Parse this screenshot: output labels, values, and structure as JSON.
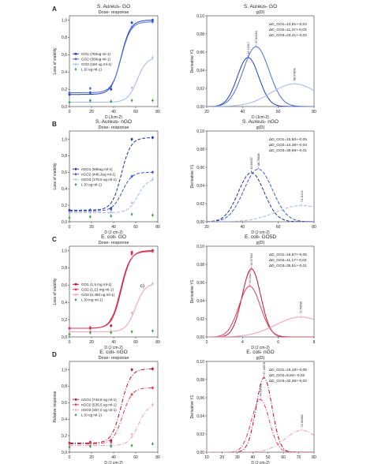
{
  "figure": {
    "panel_letters": [
      "A",
      "B",
      "C",
      "D"
    ]
  },
  "chart_data": [
    {
      "type": "line",
      "panel": "A",
      "title": "S. Aureus- GO",
      "subtitle": "Dose- response",
      "xlabel": "D (Jcm-2)",
      "ylabel": "Loss of viability",
      "xlim": [
        0,
        85
      ],
      "ylim": [
        0,
        1.05
      ],
      "xticks": [
        "0",
        "20",
        "40",
        "60",
        "80"
      ],
      "yticks": [
        "0,0",
        "0,2",
        "0,4",
        "0,6",
        "0,8",
        "1,0"
      ],
      "legend_position": "middle-left",
      "series": [
        {
          "name": "GO1 (750ug ml-1)",
          "color": "#1f3fbf",
          "style": "solid",
          "x": [
            0,
            20,
            40,
            60,
            80
          ],
          "y": [
            0.14,
            0.16,
            0.2,
            0.97,
            1.0
          ]
        },
        {
          "name": "GO2 (300ug ml-1)",
          "color": "#4a6be0",
          "style": "solid",
          "x": [
            0,
            20,
            40,
            60,
            80
          ],
          "y": [
            0.16,
            0.21,
            0.23,
            0.92,
            0.98
          ]
        },
        {
          "name": "GO3 (150 ug ml-1)",
          "color": "#a6b4ef",
          "style": "solid",
          "x": [
            0,
            20,
            40,
            60,
            80
          ],
          "y": [
            0.05,
            0.06,
            0.06,
            0.22,
            0.57
          ]
        },
        {
          "name": "L (0 ug ml-1)",
          "color": "#2e9a3c",
          "style": "points",
          "x": [
            0,
            20,
            40,
            60,
            80
          ],
          "y": [
            0.05,
            0.07,
            0.06,
            0.07,
            0.07
          ]
        }
      ]
    },
    {
      "type": "line",
      "panel": "A",
      "title": "S. Aureus- GO",
      "subtitle": "g(D)",
      "xlabel": "D (Jcm-2)",
      "ylabel": "Derivative Y1",
      "xlim": [
        20,
        80
      ],
      "ylim": [
        0,
        0.1
      ],
      "xticks": [
        "20",
        "40",
        "60",
        "80"
      ],
      "yticks": [
        "0,00",
        "0,02",
        "0,04",
        "0,06",
        "0,08",
        "0,10"
      ],
      "annotations": [
        "ΔD_GO1=13,81+-0,04",
        "ΔD_GO2=11,47+-0,03",
        "ΔD_GO3=23,41+-0,02"
      ],
      "peak_labels": [
        "43.12917",
        "47.64493",
        "68.97809"
      ],
      "series": [
        {
          "color": "#1f3fbf",
          "style": "solid",
          "peak_x": 43.1,
          "peak_y": 0.054,
          "width": 6.0
        },
        {
          "color": "#4a6be0",
          "style": "solid",
          "peak_x": 47.6,
          "peak_y": 0.066,
          "width": 7.2
        },
        {
          "color": "#a6b4ef",
          "style": "solid",
          "peak_x": 69.0,
          "peak_y": 0.025,
          "width": 13.0
        }
      ]
    },
    {
      "type": "line",
      "panel": "B",
      "title": "S. Aureus- nGO",
      "subtitle": "Dose- response",
      "xlabel": "D (J cm-2)",
      "ylabel": "Loss of viability",
      "xlim": [
        0,
        85
      ],
      "ylim": [
        0,
        1.1
      ],
      "xticks": [
        "0",
        "20",
        "40",
        "60",
        "80"
      ],
      "yticks": [
        "0,0",
        "0,2",
        "0,4",
        "0,6",
        "0,8",
        "1,0"
      ],
      "legend_position": "middle-left",
      "series": [
        {
          "name": "nGO1 (595ug ml-1)",
          "color": "#1f2f8f",
          "style": "dashed",
          "x": [
            0,
            20,
            40,
            60,
            80
          ],
          "y": [
            0.14,
            0.14,
            0.16,
            1.0,
            1.02
          ]
        },
        {
          "name": "nGO2 (446,3ug ml-1)",
          "color": "#3a54c8",
          "style": "dashed",
          "x": [
            0,
            20,
            40,
            60,
            80
          ],
          "y": [
            0.13,
            0.14,
            0.15,
            0.55,
            0.6
          ]
        },
        {
          "name": "nGO3 (178,5 ug ml-1)",
          "color": "#a6b4ef",
          "style": "dashed",
          "x": [
            0,
            20,
            40,
            60,
            80
          ],
          "y": [
            0.11,
            0.12,
            0.12,
            0.23,
            0.52
          ]
        },
        {
          "name": "L (0 ug ml-1)",
          "color": "#2e9a3c",
          "style": "points",
          "x": [
            0,
            20,
            40,
            60,
            80
          ],
          "y": [
            0.05,
            0.06,
            0.07,
            0.09,
            0.08
          ]
        }
      ]
    },
    {
      "type": "line",
      "panel": "B",
      "title": "S. Aureus- nGO",
      "subtitle": "g(D)",
      "xlabel": "D (J cm-2)",
      "ylabel": "Derivative Y1",
      "xlim": [
        20,
        80
      ],
      "ylim": [
        0,
        0.1
      ],
      "xticks": [
        "20",
        "40",
        "60",
        "80"
      ],
      "yticks": [
        "0,00",
        "0,02",
        "0,04",
        "0,06",
        "0,08",
        "0,10"
      ],
      "annotations": [
        "ΔD_GO1=15,50+-0,05",
        "ΔD_GO2=14,38+-0,04",
        "ΔD_GO3=39,69+-0,01"
      ],
      "peak_labels": [
        "44.89037",
        "48.75606",
        "73.11211"
      ],
      "series": [
        {
          "color": "#1f2f8f",
          "style": "dashed",
          "peak_x": 44.9,
          "peak_y": 0.054,
          "width": 7.2
        },
        {
          "color": "#3a54c8",
          "style": "dashed",
          "peak_x": 48.8,
          "peak_y": 0.058,
          "width": 8.0
        },
        {
          "color": "#a6b4ef",
          "style": "dashed",
          "peak_x": 73.1,
          "peak_y": 0.018,
          "width": 14.0
        }
      ]
    },
    {
      "type": "line",
      "panel": "C",
      "title": "E. coli- GO",
      "subtitle": "Dose- response",
      "xlabel": "D (J cm-2)",
      "ylabel": "Loss of viability",
      "xlim": [
        0,
        85
      ],
      "ylim": [
        0,
        1.05
      ],
      "xticks": [
        "0",
        "20",
        "40",
        "60",
        "80"
      ],
      "yticks": [
        "0,0",
        "0,2",
        "0,4",
        "0,6",
        "0,8",
        "1,0"
      ],
      "legend_position": "middle-left",
      "inset_label": "c)",
      "series": [
        {
          "name": "GO1 (1,5 mg ml-1)",
          "color": "#c8102e",
          "style": "solid",
          "x": [
            0,
            20,
            40,
            60,
            80
          ],
          "y": [
            0.1,
            0.1,
            0.13,
            0.98,
            1.0
          ]
        },
        {
          "name": "GO2 (1,13 mg ml-1)",
          "color": "#e03a5c",
          "style": "solid",
          "x": [
            0,
            20,
            40,
            60,
            80
          ],
          "y": [
            0.1,
            0.11,
            0.2,
            0.96,
            0.99
          ]
        },
        {
          "name": "GO3 (0,450 ug ml-1)",
          "color": "#f29bb0",
          "style": "solid",
          "x": [
            0,
            20,
            40,
            60,
            80
          ],
          "y": [
            0.06,
            0.07,
            0.07,
            0.28,
            0.62
          ]
        },
        {
          "name": "L (0 mg ml-1)",
          "color": "#2e9a3c",
          "style": "points",
          "x": [
            0,
            20,
            40,
            60,
            80
          ],
          "y": [
            0.03,
            0.05,
            0.05,
            0.06,
            0.07
          ]
        }
      ]
    },
    {
      "type": "line",
      "panel": "C",
      "title": "E. coli- GO5D",
      "subtitle": "g(D)",
      "xlabel": "D (J cm-2)",
      "ylabel": "Derivative Y1",
      "xlim": [
        2,
        8
      ],
      "ylim": [
        0,
        0.1
      ],
      "xticks": [
        "2",
        "4",
        "6",
        "8"
      ],
      "yticks": [
        "0,00",
        "0,02",
        "0,04",
        "0,06",
        "0,08",
        "0,10"
      ],
      "annotations": [
        "ΔD_GO1=15,67+-0,05",
        "ΔD_GO2=11,17+-0,03",
        "ΔD_GO3=35,51+-0,01"
      ],
      "peak_labels": [
        "44.97504",
        "44.04271",
        "72.59935"
      ],
      "series": [
        {
          "color": "#c8102e",
          "style": "solid",
          "peak_x": 4.5,
          "peak_y": 0.075,
          "width": 0.52
        },
        {
          "color": "#e03a5c",
          "style": "solid",
          "peak_x": 4.4,
          "peak_y": 0.056,
          "width": 0.6
        },
        {
          "color": "#f29bb0",
          "style": "solid",
          "peak_x": 7.26,
          "peak_y": 0.022,
          "width": 1.4
        }
      ]
    },
    {
      "type": "line",
      "panel": "D",
      "title": "E. coli- nGO",
      "subtitle": "Dose- response",
      "xlabel": "D (J cm-2)",
      "ylabel": "Relative response",
      "xlim": [
        0,
        85
      ],
      "ylim": [
        0,
        1.1
      ],
      "xticks": [
        "0",
        "20",
        "40",
        "60",
        "80"
      ],
      "yticks": [
        "0,0",
        "0,2",
        "0,4",
        "0,6",
        "0,8",
        "1,0"
      ],
      "legend_position": "middle-left",
      "series": [
        {
          "name": "nGO1 (743,8 ug ml-1)",
          "color": "#b0102a",
          "style": "dashdot",
          "x": [
            0,
            20,
            40,
            60,
            80
          ],
          "y": [
            0.11,
            0.12,
            0.14,
            1.0,
            1.01
          ]
        },
        {
          "name": "nGO2 (535,5 ug ml-1)",
          "color": "#e03a5c",
          "style": "dashdot",
          "x": [
            0,
            20,
            40,
            60,
            80
          ],
          "y": [
            0.1,
            0.11,
            0.12,
            0.7,
            0.78
          ]
        },
        {
          "name": "nGO3 (357,0 ug ml-1)",
          "color": "#f29bb0",
          "style": "dashdot",
          "x": [
            0,
            20,
            40,
            60,
            80
          ],
          "y": [
            0.08,
            0.09,
            0.1,
            0.22,
            0.58
          ]
        },
        {
          "name": "L (0 ug ml-1)",
          "color": "#2e9a3c",
          "style": "points",
          "x": [
            0,
            20,
            40,
            60,
            80
          ],
          "y": [
            0.06,
            0.07,
            0.07,
            0.08,
            0.1
          ]
        }
      ]
    },
    {
      "type": "line",
      "panel": "D",
      "title": "E. coli- nGO",
      "subtitle": "g(D)",
      "xlabel": "D (J cm-2)",
      "ylabel": "Derivative Y1",
      "xlim": [
        10,
        80
      ],
      "ylim": [
        0,
        0.1
      ],
      "xticks": [
        "10",
        "20",
        "30",
        "40",
        "50",
        "60",
        "70",
        "80"
      ],
      "yticks": [
        "0,00",
        "0,02",
        "0,04",
        "0,06",
        "0,08",
        "0,10"
      ],
      "annotations": [
        "ΔD_GO1=15,19+-0,05",
        "ΔD_GO2=9,84+-0,02",
        "ΔD_GO3=32,36+-0,02"
      ],
      "peak_labels": [
        "47.40078",
        "44.99921",
        "72.00466"
      ],
      "series": [
        {
          "color": "#b0102a",
          "style": "dashdot",
          "peak_x": 47.4,
          "peak_y": 0.082,
          "width": 5.2
        },
        {
          "color": "#e03a5c",
          "style": "dashdot",
          "peak_x": 45.0,
          "peak_y": 0.058,
          "width": 5.8
        },
        {
          "color": "#f29bb0",
          "style": "dashdot",
          "peak_x": 72.0,
          "peak_y": 0.024,
          "width": 11.0
        }
      ]
    }
  ]
}
